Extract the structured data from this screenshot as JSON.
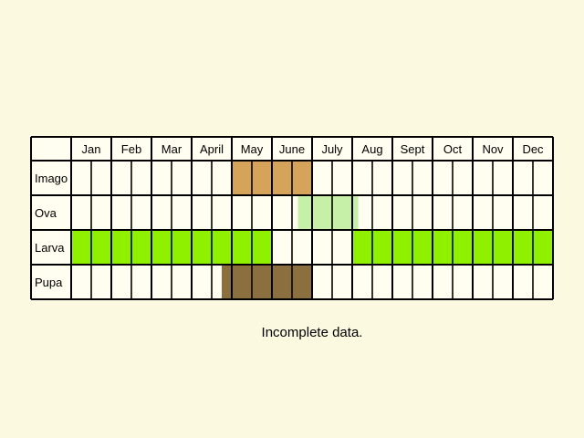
{
  "chart_data": {
    "type": "table",
    "months": [
      "Jan",
      "Feb",
      "Mar",
      "April",
      "May",
      "June",
      "July",
      "Aug",
      "Sept",
      "Oct",
      "Nov",
      "Dec"
    ],
    "half_month_columns": 24,
    "rows": [
      {
        "label": "Imago",
        "color": "#d6a35b",
        "periods": [
          {
            "from_half_month": 8,
            "to_half_month": 12
          }
        ]
      },
      {
        "label": "Ova",
        "color": "#c6f0a8",
        "periods": [
          {
            "from_half_month": 11.3,
            "to_half_month": 14.3
          }
        ]
      },
      {
        "label": "Larva",
        "color": "#8ff000",
        "periods": [
          {
            "from_half_month": 0,
            "to_half_month": 10
          },
          {
            "from_half_month": 14,
            "to_half_month": 24
          }
        ]
      },
      {
        "label": "Pupa",
        "color": "#8b6f3e",
        "periods": [
          {
            "from_half_month": 7.5,
            "to_half_month": 12
          }
        ]
      }
    ],
    "grid": true
  },
  "note": "Incomplete data."
}
